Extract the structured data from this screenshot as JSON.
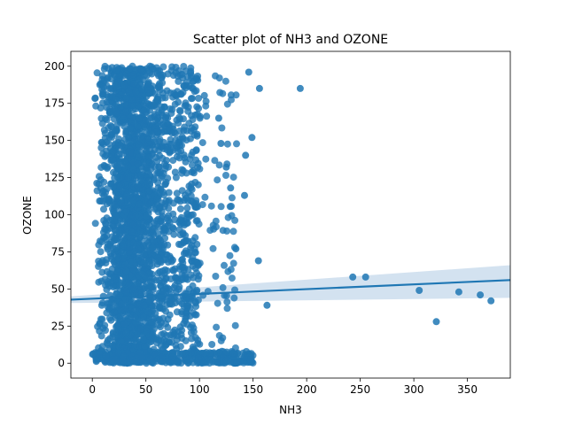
{
  "chart_data": {
    "type": "scatter",
    "title": "Scatter plot of NH3 and OZONE",
    "xlabel": "NH3",
    "ylabel": "OZONE",
    "xlim": [
      -20,
      390
    ],
    "ylim": [
      -10,
      210
    ],
    "xticks": [
      "0",
      "50",
      "100",
      "150",
      "200",
      "250",
      "300",
      "350"
    ],
    "yticks": [
      "0",
      "25",
      "50",
      "75",
      "100",
      "125",
      "150",
      "175",
      "200"
    ],
    "grid": false,
    "legend": "none",
    "colors": {
      "points": "#1f77b4",
      "line": "#1f77b4",
      "band": "#aecae4"
    },
    "dense_region": {
      "x_range": [
        0,
        75
      ],
      "y_range": [
        0,
        200
      ]
    },
    "outliers": [
      {
        "x": 146,
        "y": 196
      },
      {
        "x": 156,
        "y": 185
      },
      {
        "x": 194,
        "y": 185
      },
      {
        "x": 149,
        "y": 152
      },
      {
        "x": 143,
        "y": 140
      },
      {
        "x": 142,
        "y": 113
      },
      {
        "x": 155,
        "y": 69
      },
      {
        "x": 163,
        "y": 39
      },
      {
        "x": 243,
        "y": 58
      },
      {
        "x": 255,
        "y": 58
      },
      {
        "x": 305,
        "y": 49
      },
      {
        "x": 342,
        "y": 48
      },
      {
        "x": 362,
        "y": 46
      },
      {
        "x": 372,
        "y": 42
      },
      {
        "x": 321,
        "y": 28
      },
      {
        "x": 129,
        "y": 118
      },
      {
        "x": 134,
        "y": 77
      },
      {
        "x": 125,
        "y": 132
      },
      {
        "x": 120,
        "y": 148
      },
      {
        "x": 118,
        "y": 165
      }
    ],
    "regression": {
      "x": [
        -20,
        390
      ],
      "y": [
        42.8,
        56.0
      ],
      "ci_lower": [
        40.5,
        44.0
      ],
      "ci_upper": [
        45.0,
        66.0
      ]
    }
  }
}
